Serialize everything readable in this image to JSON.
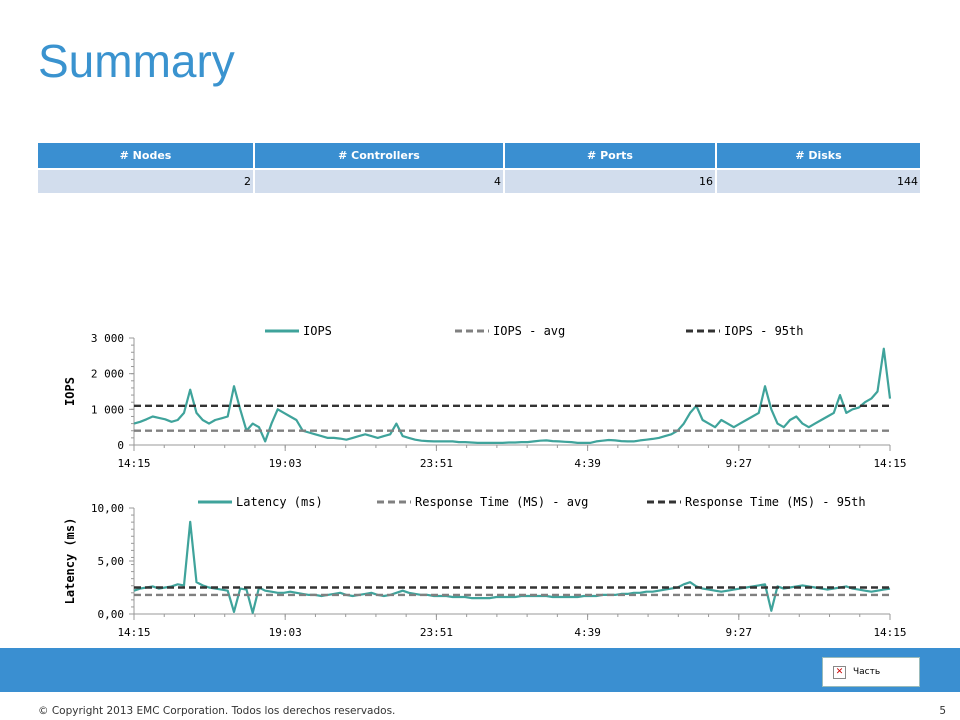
{
  "title": "Summary",
  "table": {
    "headers": [
      "# Nodes",
      "# Controllers",
      "# Ports",
      "# Disks"
    ],
    "row": [
      "2",
      "4",
      "16",
      "144"
    ]
  },
  "embed_label": "Часть",
  "footer": "© Copyright 2013 EMC Corporation. Todos los derechos reservados.",
  "page_number": "5",
  "colors": {
    "accent": "#3a8fd1",
    "title": "#3a93cf",
    "series": "#3fa39b",
    "avg": "#808080",
    "p95": "#333333"
  },
  "chart_data": [
    {
      "type": "line",
      "ylabel": "IOPS",
      "xlabel": "",
      "x_tick_labels": [
        "14:15",
        "19:03",
        "23:51",
        "4:39",
        "9:27",
        "14:15"
      ],
      "y_tick_labels": [
        "0",
        "1 000",
        "2 000",
        "3 000"
      ],
      "y_ticks": [
        0,
        1000,
        2000,
        3000
      ],
      "ylim": [
        0,
        3000
      ],
      "legend_position": "top",
      "series": [
        {
          "name": "IOPS",
          "style": "solid",
          "values": [
            600,
            650,
            720,
            800,
            760,
            720,
            650,
            700,
            900,
            1550,
            900,
            700,
            600,
            700,
            750,
            800,
            1650,
            1000,
            400,
            600,
            500,
            100,
            600,
            1000,
            900,
            800,
            700,
            400,
            350,
            300,
            250,
            200,
            200,
            180,
            150,
            200,
            250,
            300,
            250,
            200,
            250,
            300,
            600,
            250,
            200,
            150,
            120,
            110,
            100,
            100,
            100,
            100,
            80,
            80,
            70,
            60,
            60,
            60,
            60,
            60,
            70,
            70,
            80,
            80,
            100,
            120,
            130,
            110,
            100,
            90,
            80,
            60,
            60,
            60,
            100,
            120,
            140,
            130,
            110,
            100,
            100,
            130,
            150,
            170,
            200,
            250,
            300,
            400,
            600,
            900,
            1100,
            700,
            600,
            500,
            700,
            600,
            500,
            600,
            700,
            800,
            900,
            1650,
            1000,
            600,
            500,
            700,
            800,
            600,
            500,
            600,
            700,
            800,
            900,
            1400,
            900,
            1000,
            1050,
            1200,
            1300,
            1500,
            2700,
            1300
          ]
        },
        {
          "name": "IOPS - avg",
          "style": "dash",
          "values": [
            400,
            400
          ]
        },
        {
          "name": "IOPS - 95th",
          "style": "dash",
          "values": [
            1100,
            1100
          ]
        }
      ]
    },
    {
      "type": "line",
      "ylabel": "Latency (ms)",
      "xlabel": "",
      "x_tick_labels": [
        "14:15",
        "19:03",
        "23:51",
        "4:39",
        "9:27",
        "14:15"
      ],
      "y_tick_labels": [
        "0,00",
        "5,00",
        "10,00"
      ],
      "y_ticks": [
        0,
        5,
        10
      ],
      "ylim": [
        0,
        10
      ],
      "legend_position": "top",
      "series": [
        {
          "name": "Latency (ms)",
          "style": "solid",
          "values": [
            2.2,
            2.4,
            2.5,
            2.6,
            2.4,
            2.5,
            2.6,
            2.8,
            2.7,
            8.7,
            3.0,
            2.7,
            2.5,
            2.4,
            2.3,
            2.2,
            0.2,
            2.4,
            2.3,
            0.1,
            2.5,
            2.2,
            2.1,
            2.0,
            2.0,
            2.1,
            2.0,
            1.9,
            1.8,
            1.8,
            1.7,
            1.8,
            1.9,
            2.0,
            1.8,
            1.7,
            1.8,
            1.9,
            2.0,
            1.8,
            1.7,
            1.8,
            2.0,
            2.2,
            2.0,
            1.9,
            1.8,
            1.8,
            1.7,
            1.7,
            1.7,
            1.6,
            1.6,
            1.6,
            1.5,
            1.5,
            1.5,
            1.5,
            1.6,
            1.6,
            1.6,
            1.6,
            1.7,
            1.7,
            1.7,
            1.7,
            1.7,
            1.6,
            1.6,
            1.6,
            1.6,
            1.6,
            1.7,
            1.7,
            1.7,
            1.8,
            1.8,
            1.8,
            1.9,
            1.9,
            2.0,
            2.0,
            2.1,
            2.1,
            2.2,
            2.3,
            2.4,
            2.5,
            2.8,
            3.0,
            2.6,
            2.4,
            2.3,
            2.2,
            2.1,
            2.2,
            2.3,
            2.4,
            2.5,
            2.6,
            2.7,
            2.8,
            0.3,
            2.6,
            2.4,
            2.5,
            2.6,
            2.7,
            2.6,
            2.5,
            2.4,
            2.3,
            2.4,
            2.5,
            2.6,
            2.4,
            2.3,
            2.2,
            2.1,
            2.2,
            2.3,
            2.4
          ]
        },
        {
          "name": "Response Time (MS) - avg",
          "style": "dash",
          "values": [
            1.8,
            1.8
          ]
        },
        {
          "name": "Response Time (MS) - 95th",
          "style": "dash",
          "values": [
            2.5,
            2.5
          ]
        }
      ]
    }
  ]
}
